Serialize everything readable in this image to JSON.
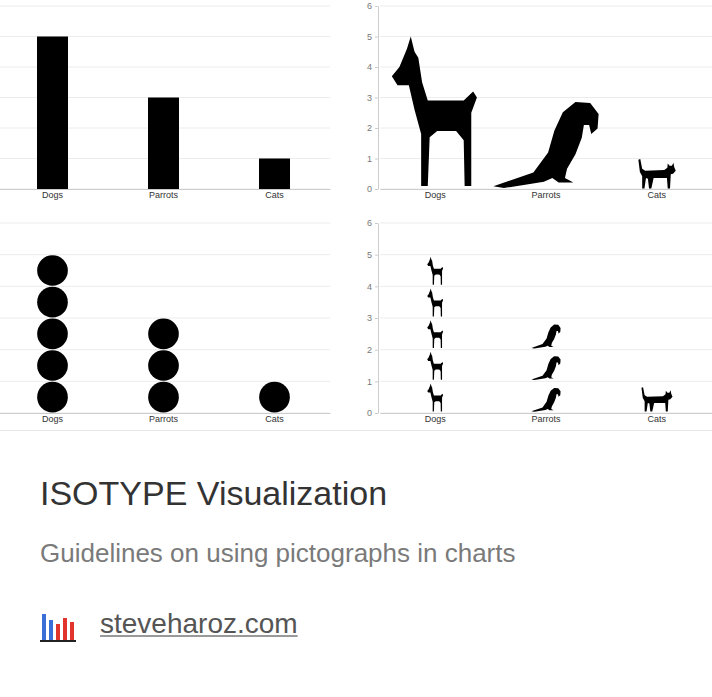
{
  "chart_data": [
    {
      "type": "bar",
      "categories": [
        "Dogs",
        "Parrots",
        "Cats"
      ],
      "values": [
        5,
        3,
        1
      ],
      "color": "#000000",
      "ylim": [
        0,
        6
      ],
      "yticks": [
        0,
        1,
        2,
        3,
        4,
        5,
        6
      ],
      "grid": true,
      "tick_labels": "x"
    },
    {
      "type": "pictograph",
      "categories": [
        "Dogs",
        "Parrots",
        "Cats"
      ],
      "values": [
        5,
        3,
        1
      ],
      "color": "#000000",
      "ylim": [
        0,
        6
      ],
      "yticks": [
        0,
        1,
        2,
        3,
        4,
        5,
        6
      ],
      "grid": true
    },
    {
      "type": "isotype",
      "marker": "circle",
      "categories": [
        "Dogs",
        "Parrots",
        "Cats"
      ],
      "values": [
        5,
        3,
        1
      ],
      "color": "#000000",
      "ylim": [
        0,
        6
      ],
      "yticks": [
        0,
        1,
        2,
        3,
        4,
        5,
        6
      ],
      "grid": true,
      "tick_labels": "x"
    },
    {
      "type": "isotype",
      "marker": "icon",
      "categories": [
        "Dogs",
        "Parrots",
        "Cats"
      ],
      "values": [
        5,
        3,
        1
      ],
      "color": "#000000",
      "ylim": [
        0,
        6
      ],
      "yticks": [
        0,
        1,
        2,
        3,
        4,
        5,
        6
      ],
      "grid": true
    }
  ],
  "card": {
    "title": "ISOTYPE Visualization",
    "subtitle": "Guidelines on using pictographs in charts",
    "link": "steveharoz.com"
  }
}
